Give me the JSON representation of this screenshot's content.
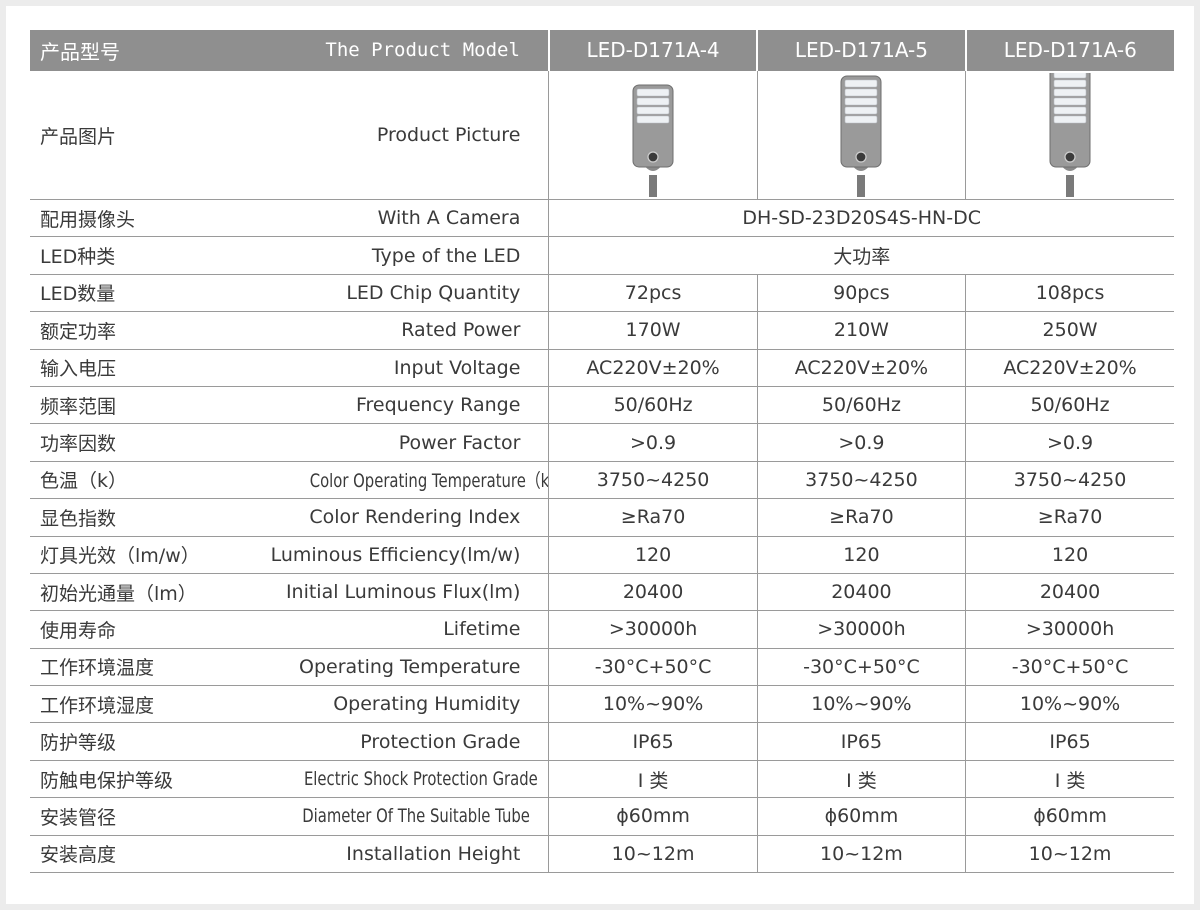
{
  "header": {
    "label_cn": "产品型号",
    "label_en": "The Product Model",
    "models": [
      "LED-D171A-4",
      "LED-D171A-5",
      "LED-D171A-6"
    ]
  },
  "picture_row": {
    "label_cn": "产品图片",
    "label_en": "Product Picture"
  },
  "rows": [
    {
      "cn": "配用摄像头",
      "en": "With A Camera",
      "span": true,
      "value": "DH-SD-23D20S4S-HN-DC"
    },
    {
      "cn": "LED种类",
      "en": "Type of the LED",
      "span": true,
      "value": "大功率"
    },
    {
      "cn": "LED数量",
      "en": "LED Chip Quantity",
      "values": [
        "72pcs",
        "90pcs",
        "108pcs"
      ]
    },
    {
      "cn": "额定功率",
      "en": "Rated Power",
      "values": [
        "170W",
        "210W",
        "250W"
      ]
    },
    {
      "cn": "输入电压",
      "en": "Input Voltage",
      "values": [
        "AC220V±20%",
        "AC220V±20%",
        "AC220V±20%"
      ]
    },
    {
      "cn": "频率范围",
      "en": "Frequency Range",
      "values": [
        "50/60Hz",
        "50/60Hz",
        "50/60Hz"
      ]
    },
    {
      "cn": "功率因数",
      "en": "Power Factor",
      "values": [
        ">0.9",
        ">0.9",
        ">0.9"
      ]
    },
    {
      "cn": "色温（k）",
      "en": "Color Operating Temperature（k）",
      "narrow": true,
      "values": [
        "3750~4250",
        "3750~4250",
        "3750~4250"
      ]
    },
    {
      "cn": "显色指数",
      "en": "Color Rendering Index",
      "values": [
        "≥Ra70",
        "≥Ra70",
        "≥Ra70"
      ]
    },
    {
      "cn": "灯具光效（lm/w）",
      "en": "Luminous Efficiency(lm/w)",
      "values": [
        "120",
        "120",
        "120"
      ]
    },
    {
      "cn": "初始光通量（lm）",
      "en": "Initial Luminous Flux(lm)",
      "values": [
        "20400",
        "20400",
        "20400"
      ]
    },
    {
      "cn": "使用寿命",
      "en": "Lifetime",
      "values": [
        ">30000h",
        ">30000h",
        ">30000h"
      ]
    },
    {
      "cn": "工作环境温度",
      "en": "Operating Temperature",
      "values": [
        "-30°C+50°C",
        "-30°C+50°C",
        "-30°C+50°C"
      ]
    },
    {
      "cn": "工作环境湿度",
      "en": "Operating Humidity",
      "values": [
        "10%~90%",
        "10%~90%",
        "10%~90%"
      ]
    },
    {
      "cn": "防护等级",
      "en": "Protection Grade",
      "values": [
        "IP65",
        "IP65",
        "IP65"
      ]
    },
    {
      "cn": "防触电保护等级",
      "en": "Electric Shock Protection Grade",
      "narrow": true,
      "values": [
        "I 类",
        "I 类",
        "I 类"
      ]
    },
    {
      "cn": "安装管径",
      "en": "Diameter Of The Suitable Tube",
      "narrow": true,
      "values": [
        "ϕ60mm",
        "ϕ60mm",
        "ϕ60mm"
      ]
    },
    {
      "cn": "安装高度",
      "en": "Installation Height",
      "values": [
        "10~12m",
        "10~12m",
        "10~12m"
      ]
    }
  ],
  "lamp_images": [
    {
      "icon": "street-lamp-icon",
      "led_rows": 4
    },
    {
      "icon": "street-lamp-icon",
      "led_rows": 5
    },
    {
      "icon": "street-lamp-icon",
      "led_rows": 6
    }
  ],
  "colors": {
    "header_bg": "#8f8f8f",
    "header_text": "#ffffff",
    "grid_line": "#9a9a9a",
    "text": "#3a3a3a"
  }
}
